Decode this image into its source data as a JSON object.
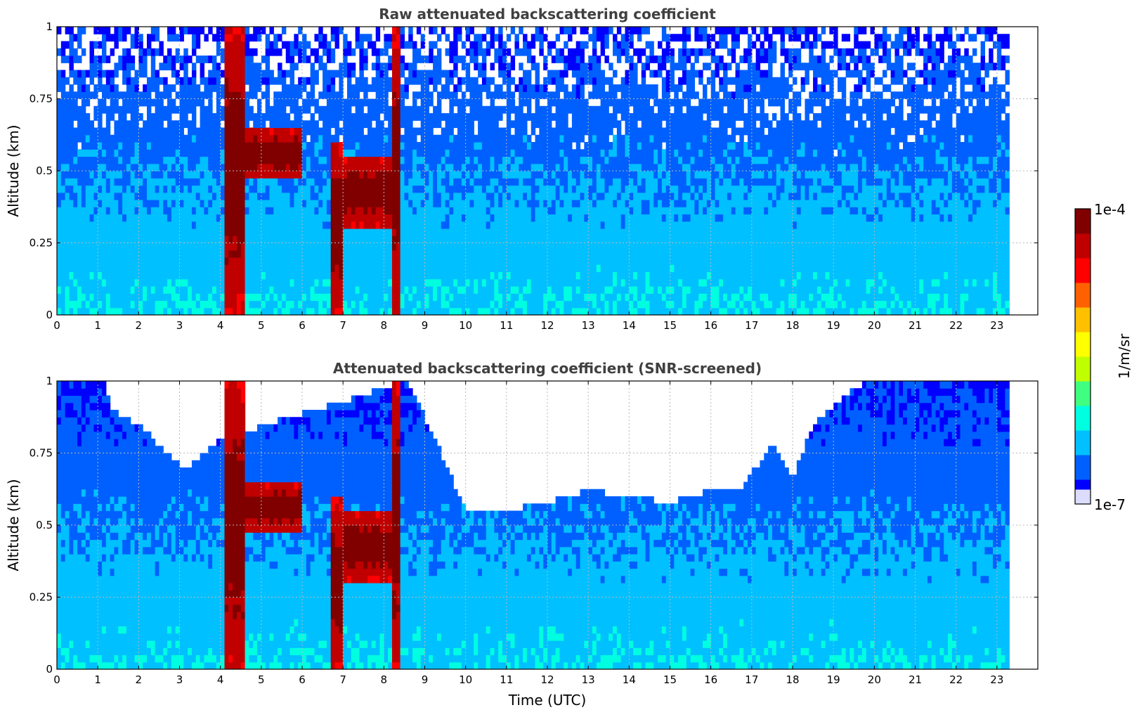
{
  "colors": {
    "colormap": [
      "#0000ff",
      "#0060ff",
      "#00c0ff",
      "#00ffe0",
      "#40ff80",
      "#c0ff00",
      "#ffff00",
      "#ffc000",
      "#ff6000",
      "#ff0000",
      "#c00000",
      "#800000"
    ],
    "low_end": "#dcdcff",
    "frame": "#000000",
    "grid": "#b8b8b8",
    "title": "#404040"
  },
  "colorbar": {
    "max_label": "1e-4",
    "min_label": "1e-7",
    "unit_label": "1/m/sr",
    "scale": "log"
  },
  "chart_data": [
    {
      "type": "heatmap",
      "title": "Raw attenuated backscattering coefficient",
      "xlabel": "",
      "ylabel": "Altitude (km)",
      "xlim": [
        0,
        24
      ],
      "ylim": [
        0,
        1
      ],
      "xticks": [
        "0",
        "1",
        "2",
        "3",
        "4",
        "5",
        "6",
        "7",
        "8",
        "9",
        "10",
        "11",
        "12",
        "13",
        "14",
        "15",
        "16",
        "17",
        "18",
        "19",
        "20",
        "21",
        "22",
        "23"
      ],
      "yticks": [
        "0",
        "0.25",
        "0.5",
        "0.75",
        "1"
      ],
      "grid": true,
      "data_end_hour": 23.3,
      "cloud_features": [
        {
          "start": 4.1,
          "end": 4.6,
          "base": 0,
          "top": 1
        },
        {
          "start": 4.6,
          "end": 6.0,
          "base": 0.47,
          "top": 0.65
        },
        {
          "start": 6.7,
          "end": 7.0,
          "base": 0,
          "top": 0.6
        },
        {
          "start": 7.0,
          "end": 8.2,
          "base": 0.3,
          "top": 0.55
        },
        {
          "start": 8.2,
          "end": 8.35,
          "base": 0,
          "top": 1
        }
      ]
    },
    {
      "type": "heatmap",
      "title": "Attenuated backscattering coefficient (SNR-screened)",
      "xlabel": "Time (UTC)",
      "ylabel": "Altitude (km)",
      "xlim": [
        0,
        24
      ],
      "ylim": [
        0,
        1
      ],
      "xticks": [
        "0",
        "1",
        "2",
        "3",
        "4",
        "5",
        "6",
        "7",
        "8",
        "9",
        "10",
        "11",
        "12",
        "13",
        "14",
        "15",
        "16",
        "17",
        "18",
        "19",
        "20",
        "21",
        "22",
        "23"
      ],
      "yticks": [
        "0",
        "0.25",
        "0.5",
        "0.75",
        "1"
      ],
      "grid": true,
      "data_end_hour": 23.3,
      "screened_top_profile": [
        [
          0,
          1
        ],
        [
          1.2,
          1
        ],
        [
          1.3,
          0.9
        ],
        [
          2.0,
          0.85
        ],
        [
          2.9,
          0.72
        ],
        [
          3.2,
          0.7
        ],
        [
          4.0,
          0.8
        ],
        [
          8.6,
          1
        ],
        [
          9.5,
          0.72
        ],
        [
          10.0,
          0.55
        ],
        [
          11.0,
          0.55
        ],
        [
          12.0,
          0.58
        ],
        [
          13.0,
          0.62
        ],
        [
          14.0,
          0.6
        ],
        [
          15.0,
          0.58
        ],
        [
          16.0,
          0.62
        ],
        [
          16.7,
          0.62
        ],
        [
          17.5,
          0.78
        ],
        [
          18.0,
          0.66
        ],
        [
          18.5,
          0.85
        ],
        [
          19.5,
          0.98
        ],
        [
          20.0,
          1
        ],
        [
          23.3,
          1
        ]
      ]
    }
  ]
}
